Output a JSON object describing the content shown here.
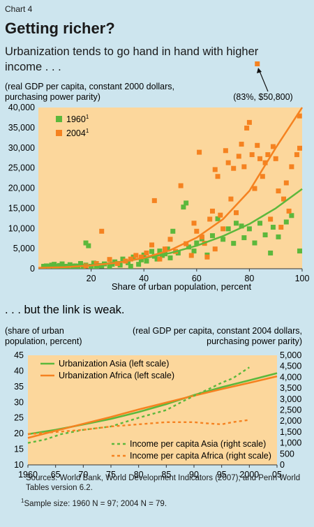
{
  "header": {
    "chart_label": "Chart 4",
    "title": "Getting richer?"
  },
  "chart_data": [
    {
      "type": "scatter",
      "title": "Urbanization tends to go hand in hand with higher income . . .",
      "ylabel": "(real GDP per capita, constant 2000 dollars, purchasing power parity)",
      "xlabel": "Share of urban population, percent",
      "xlim": [
        0,
        100
      ],
      "ylim": [
        0,
        40000
      ],
      "x_ticks": [
        "20",
        "40",
        "60",
        "80",
        "100"
      ],
      "y_ticks": [
        "0",
        "5,000",
        "10,000",
        "15,000",
        "20,000",
        "25,000",
        "30,000",
        "35,000",
        "40,000"
      ],
      "annotation": "(83%, $50,800)",
      "outlier": {
        "x": 83,
        "y": 50800
      },
      "colors": {
        "1960": "#5cb83c",
        "2004": "#f58220",
        "panel": "#fcd79c"
      },
      "series": [
        {
          "name": "1960",
          "footnote_mark": "1",
          "points": [
            [
              2,
              400
            ],
            [
              3,
              700
            ],
            [
              4,
              200
            ],
            [
              5,
              900
            ],
            [
              6,
              500
            ],
            [
              7,
              300
            ],
            [
              8,
              800
            ],
            [
              9,
              200
            ],
            [
              10,
              600
            ],
            [
              11,
              400
            ],
            [
              12,
              1000
            ],
            [
              13,
              300
            ],
            [
              14,
              700
            ],
            [
              15,
              500
            ],
            [
              16,
              1300
            ],
            [
              17,
              200
            ],
            [
              18,
              900
            ],
            [
              20,
              600
            ],
            [
              21,
              1400
            ],
            [
              22,
              300
            ],
            [
              23,
              800
            ],
            [
              25,
              1200
            ],
            [
              27,
              500
            ],
            [
              29,
              1700
            ],
            [
              31,
              900
            ],
            [
              32,
              2400
            ],
            [
              34,
              1500
            ],
            [
              36,
              2900
            ],
            [
              38,
              1100
            ],
            [
              40,
              3400
            ],
            [
              41,
              1900
            ],
            [
              43,
              4300
            ],
            [
              45,
              2400
            ],
            [
              47,
              3300
            ],
            [
              49,
              4900
            ],
            [
              50,
              2700
            ],
            [
              51,
              9300
            ],
            [
              53,
              3900
            ],
            [
              55,
              15300
            ],
            [
              56,
              16300
            ],
            [
              57,
              5400
            ],
            [
              59,
              4400
            ],
            [
              60,
              6400
            ],
            [
              62,
              7400
            ],
            [
              64,
              3400
            ],
            [
              66,
              8200
            ],
            [
              68,
              12400
            ],
            [
              70,
              7300
            ],
            [
              72,
              9900
            ],
            [
              74,
              6300
            ],
            [
              75,
              11300
            ],
            [
              77,
              10600
            ],
            [
              78,
              7700
            ],
            [
              80,
              9900
            ],
            [
              82,
              6400
            ],
            [
              84,
              11300
            ],
            [
              86,
              8400
            ],
            [
              88,
              3900
            ],
            [
              89,
              10300
            ],
            [
              91,
              7900
            ],
            [
              94,
              11600
            ],
            [
              96,
              13200
            ],
            [
              100,
              4400
            ],
            [
              18,
              6400
            ],
            [
              19,
              5700
            ],
            [
              6,
              1100
            ],
            [
              9,
              1200
            ],
            [
              14,
              400
            ],
            [
              24,
              700
            ],
            [
              28,
              1100
            ],
            [
              35,
              600
            ],
            [
              39,
              2200
            ],
            [
              44,
              3100
            ],
            [
              46,
              4400
            ],
            [
              48,
              3700
            ]
          ]
        },
        {
          "name": "2004",
          "footnote_mark": "1",
          "points": [
            [
              18,
              700
            ],
            [
              22,
              1300
            ],
            [
              24,
              9300
            ],
            [
              27,
              2300
            ],
            [
              30,
              1300
            ],
            [
              33,
              1900
            ],
            [
              35,
              2400
            ],
            [
              37,
              3300
            ],
            [
              39,
              2900
            ],
            [
              41,
              3900
            ],
            [
              43,
              5900
            ],
            [
              44,
              16900
            ],
            [
              46,
              2400
            ],
            [
              48,
              4900
            ],
            [
              50,
              7300
            ],
            [
              52,
              4300
            ],
            [
              54,
              20600
            ],
            [
              56,
              6200
            ],
            [
              58,
              3300
            ],
            [
              59,
              11300
            ],
            [
              60,
              9300
            ],
            [
              61,
              28900
            ],
            [
              62,
              7900
            ],
            [
              63,
              6300
            ],
            [
              65,
              12300
            ],
            [
              66,
              14300
            ],
            [
              67,
              24600
            ],
            [
              68,
              22900
            ],
            [
              69,
              13300
            ],
            [
              70,
              9900
            ],
            [
              71,
              29300
            ],
            [
              72,
              26300
            ],
            [
              73,
              17300
            ],
            [
              74,
              24900
            ],
            [
              75,
              13900
            ],
            [
              76,
              27900
            ],
            [
              77,
              30900
            ],
            [
              78,
              25300
            ],
            [
              79,
              34900
            ],
            [
              80,
              36300
            ],
            [
              81,
              28300
            ],
            [
              82,
              19900
            ],
            [
              83,
              30600
            ],
            [
              84,
              27300
            ],
            [
              85,
              22900
            ],
            [
              86,
              26300
            ],
            [
              87,
              28300
            ],
            [
              88,
              12300
            ],
            [
              89,
              30300
            ],
            [
              90,
              27300
            ],
            [
              91,
              19300
            ],
            [
              92,
              10300
            ],
            [
              93,
              17300
            ],
            [
              94,
              21300
            ],
            [
              95,
              14300
            ],
            [
              96,
              25300
            ],
            [
              98,
              28300
            ],
            [
              99,
              37900
            ],
            [
              100,
              29900
            ],
            [
              64,
              2900
            ],
            [
              67,
              4900
            ]
          ]
        }
      ],
      "fit_lines": [
        {
          "name": "1960",
          "points": [
            [
              0,
              200
            ],
            [
              10,
              500
            ],
            [
              20,
              900
            ],
            [
              30,
              1600
            ],
            [
              40,
              2600
            ],
            [
              50,
              3900
            ],
            [
              60,
              5700
            ],
            [
              70,
              8100
            ],
            [
              80,
              11100
            ],
            [
              90,
              15000
            ],
            [
              100,
              19800
            ]
          ]
        },
        {
          "name": "2004",
          "points": [
            [
              0,
              200
            ],
            [
              10,
              400
            ],
            [
              20,
              800
            ],
            [
              30,
              1500
            ],
            [
              40,
              2700
            ],
            [
              50,
              4600
            ],
            [
              60,
              7700
            ],
            [
              70,
              12300
            ],
            [
              80,
              19300
            ],
            [
              90,
              30000
            ],
            [
              100,
              41000
            ]
          ]
        }
      ]
    },
    {
      "type": "line",
      "title": ". . . but the link is weak.",
      "ylabel_left": "(share of urban population, percent)",
      "ylabel_right": "(real GDP per capita, constant 2004 dollars, purchasing power parity)",
      "x_ticks": [
        "1960",
        "65",
        "70",
        "75",
        "80",
        "85",
        "90",
        "95",
        "2000",
        "05"
      ],
      "xlim": [
        1960,
        2005
      ],
      "ylim_left": [
        10,
        45
      ],
      "ylim_right": [
        0,
        5000
      ],
      "left_ticks": [
        "10",
        "15",
        "20",
        "25",
        "30",
        "35",
        "40",
        "45"
      ],
      "right_ticks": [
        "0",
        "500",
        "1,000",
        "1,500",
        "2,000",
        "2,500",
        "3,000",
        "3,500",
        "4,000",
        "4,500",
        "5,000"
      ],
      "colors": {
        "asia": "#5cb83c",
        "africa": "#f58220",
        "panel": "#fcd79c"
      },
      "series": [
        {
          "name": "Urbanization Asia (left scale)",
          "axis": "left",
          "style": "solid",
          "x": [
            1960,
            1965,
            1970,
            1975,
            1980,
            1985,
            1990,
            1995,
            2000,
            2005
          ],
          "values": [
            19.8,
            21.2,
            22.9,
            24.7,
            26.9,
            29.4,
            32.3,
            34.8,
            37.0,
            39.3
          ]
        },
        {
          "name": "Urbanization Africa (left scale)",
          "axis": "left",
          "style": "solid",
          "x": [
            1960,
            1965,
            1970,
            1975,
            1980,
            1985,
            1990,
            1995,
            2000,
            2005
          ],
          "values": [
            18.6,
            20.9,
            23.1,
            25.3,
            27.7,
            29.9,
            32.1,
            34.2,
            36.2,
            38.3
          ]
        },
        {
          "name": "Income per capita Asia (right scale)",
          "axis": "right",
          "style": "dashed",
          "x": [
            1960,
            1963,
            1966,
            1970,
            1975,
            1980,
            1985,
            1988,
            1990,
            1993,
            1995,
            1997,
            2000
          ],
          "values": [
            1000,
            1150,
            1400,
            1600,
            1750,
            2150,
            2500,
            2900,
            3150,
            3500,
            3750,
            3950,
            4450
          ]
        },
        {
          "name": "Income per capita Africa (right scale)",
          "axis": "right",
          "style": "dashed",
          "x": [
            1960,
            1965,
            1970,
            1975,
            1980,
            1985,
            1990,
            1992,
            1995,
            1997,
            2000
          ],
          "values": [
            1400,
            1500,
            1600,
            1750,
            1850,
            1950,
            1950,
            1900,
            1850,
            1950,
            2050
          ]
        }
      ]
    }
  ],
  "footer": {
    "sources": "Sources: World Bank, World Development Indicators (2007); and Penn World Tables version 6.2.",
    "footnote_mark": "1",
    "footnote": "Sample size: 1960 N = 97; 2004 N = 79."
  }
}
